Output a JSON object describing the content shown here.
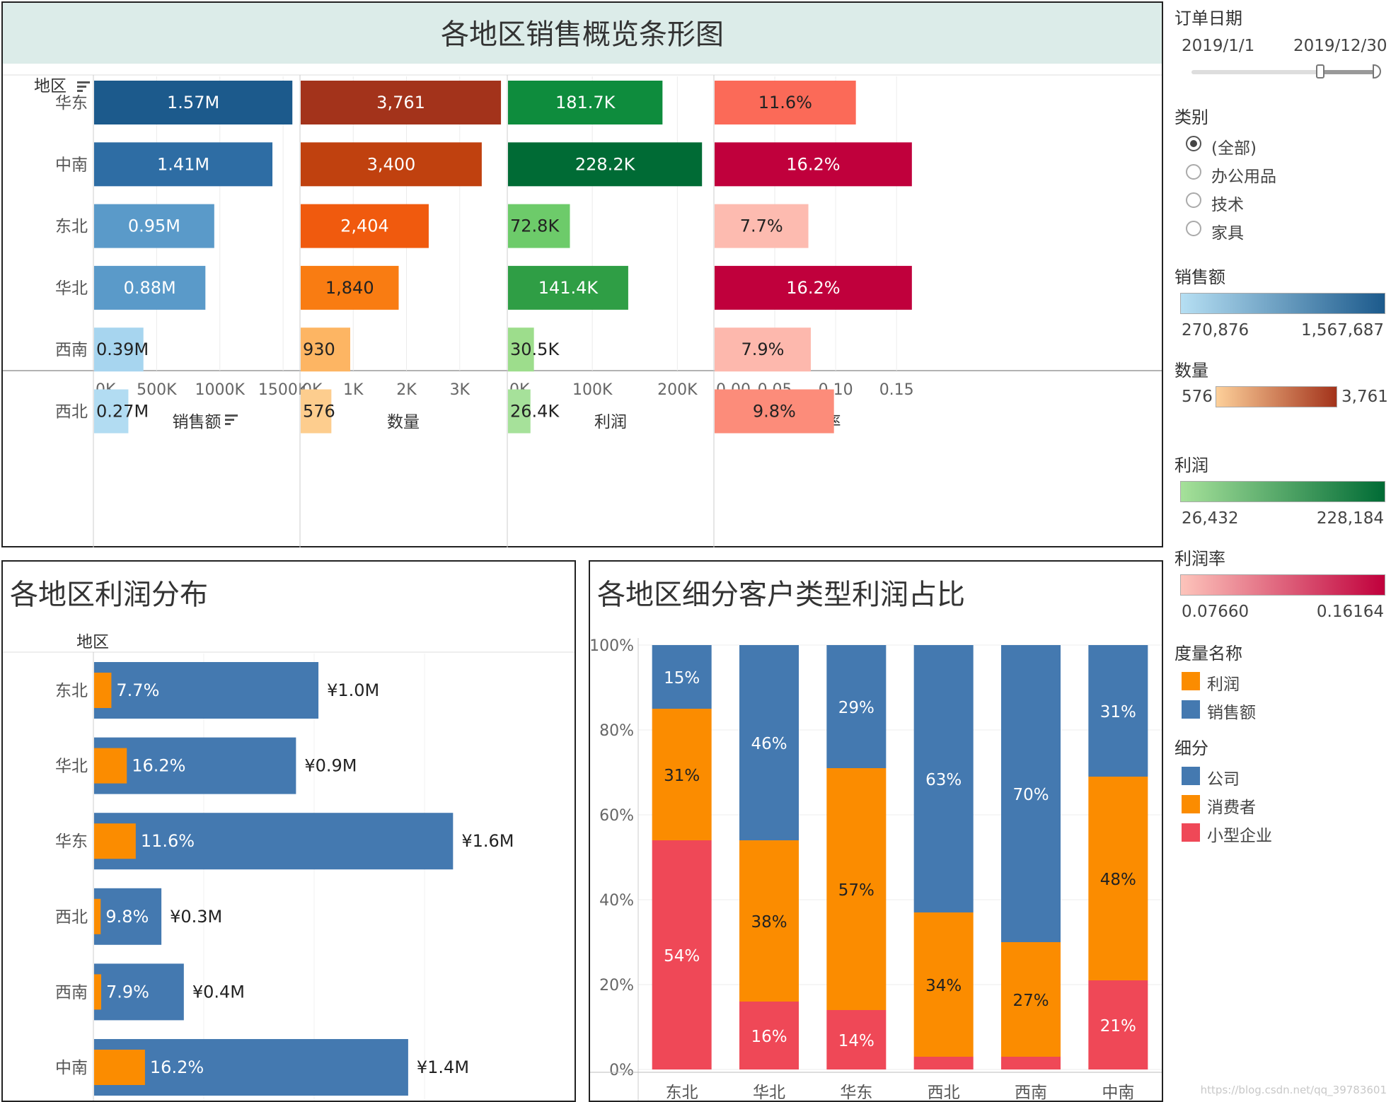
{
  "overview": {
    "title": "各地区销售概览条形图",
    "row_header": "地区",
    "regions": [
      "华东",
      "中南",
      "东北",
      "华北",
      "西南",
      "西北"
    ],
    "columns": [
      {
        "key": "sales",
        "title": "销售额",
        "sort_icon": "sort-icon",
        "ticks": [
          "0K",
          "500K",
          "1000K",
          "1500K"
        ],
        "tick_values": [
          0,
          500000,
          1000000,
          1500000
        ],
        "max": 1600000,
        "values": [
          1567687,
          1410000,
          950000,
          880000,
          390000,
          270876
        ],
        "labels": [
          "1.57M",
          "1.41M",
          "0.95M",
          "0.88M",
          "0.39M",
          "0.27M"
        ],
        "colors": [
          "#1c5a8c",
          "#2e6da4",
          "#5a9ac9",
          "#5a9ac9",
          "#a7d5ef",
          "#b2dcf2"
        ]
      },
      {
        "key": "qty",
        "title": "数量",
        "ticks": [
          "0K",
          "1K",
          "2K",
          "3K"
        ],
        "tick_values": [
          0,
          1000,
          2000,
          3000
        ],
        "max": 3800,
        "values": [
          3761,
          3400,
          2404,
          1840,
          930,
          576
        ],
        "labels": [
          "3,761",
          "3,400",
          "2,404",
          "1,840",
          "930",
          "576"
        ],
        "colors": [
          "#a3331b",
          "#c0410f",
          "#f05a0e",
          "#f97c12",
          "#fdb563",
          "#fdcd8e"
        ]
      },
      {
        "key": "profit",
        "title": "利润",
        "ticks": [
          "0K",
          "100K",
          "200K"
        ],
        "tick_values": [
          0,
          100000,
          200000
        ],
        "max": 238000,
        "values": [
          181700,
          228184,
          72800,
          141400,
          30500,
          26432
        ],
        "labels": [
          "181.7K",
          "228.2K",
          "72.8K",
          "141.4K",
          "30.5K",
          "26.4K"
        ],
        "colors": [
          "#0e8c3d",
          "#006b35",
          "#6dcb6a",
          "#2f9e45",
          "#9ddd8c",
          "#a6e19a"
        ]
      },
      {
        "key": "margin",
        "title": "利润率",
        "ticks": [
          "0.00",
          "0.05",
          "0.10",
          "0.15"
        ],
        "tick_values": [
          0,
          0.05,
          0.1,
          0.15
        ],
        "max": 0.165,
        "values": [
          0.116,
          0.162,
          0.077,
          0.162,
          0.079,
          0.098
        ],
        "labels": [
          "11.6%",
          "16.2%",
          "7.7%",
          "16.2%",
          "7.9%",
          "9.8%"
        ],
        "colors": [
          "#fb6a58",
          "#c0003c",
          "#fdbbb0",
          "#c0003c",
          "#fdb8ad",
          "#fc8c7a"
        ]
      }
    ]
  },
  "profit_dist": {
    "title": "各地区利润分布",
    "row_header": "地区",
    "max_sales": 1640000,
    "rows": [
      {
        "region": "东北",
        "sales": 1000000,
        "margin": 0.077,
        "margin_label": "7.7%",
        "sales_label": "¥1.0M"
      },
      {
        "region": "华北",
        "sales": 900000,
        "margin": 0.162,
        "margin_label": "16.2%",
        "sales_label": "¥0.9M"
      },
      {
        "region": "华东",
        "sales": 1600000,
        "margin": 0.116,
        "margin_label": "11.6%",
        "sales_label": "¥1.6M"
      },
      {
        "region": "西北",
        "sales": 300000,
        "margin": 0.098,
        "margin_label": "9.8%",
        "sales_label": "¥0.3M"
      },
      {
        "region": "西南",
        "sales": 400000,
        "margin": 0.079,
        "margin_label": "7.9%",
        "sales_label": "¥0.4M"
      },
      {
        "region": "中南",
        "sales": 1400000,
        "margin": 0.162,
        "margin_label": "16.2%",
        "sales_label": "¥1.4M"
      }
    ],
    "colors": {
      "sales": "#4479b0",
      "profit": "#fb8c00"
    }
  },
  "segment": {
    "title": "各地区细分客户类型利润占比",
    "yticks": [
      "100%",
      "80%",
      "60%",
      "40%",
      "20%",
      "0%"
    ],
    "categories": [
      "东北",
      "华北",
      "华东",
      "西北",
      "西南",
      "中南"
    ],
    "series": [
      {
        "name": "小型企业",
        "color": "#ef4857",
        "values": [
          54,
          16,
          14,
          3,
          3,
          21
        ],
        "labels": [
          "54%",
          "16%",
          "14%",
          "",
          "",
          "21%"
        ]
      },
      {
        "name": "消费者",
        "color": "#fb8c00",
        "values": [
          31,
          38,
          57,
          34,
          27,
          48
        ],
        "labels": [
          "31%",
          "38%",
          "57%",
          "34%",
          "27%",
          "48%"
        ]
      },
      {
        "name": "公司",
        "color": "#4479b0",
        "values": [
          15,
          46,
          29,
          63,
          70,
          31
        ],
        "labels": [
          "15%",
          "46%",
          "29%",
          "63%",
          "70%",
          "31%"
        ]
      }
    ]
  },
  "sidebar": {
    "date_filter": {
      "title": "订单日期",
      "start": "2019/1/1",
      "end": "2019/12/30"
    },
    "category_filter": {
      "title": "类别",
      "options": [
        "(全部)",
        "办公用品",
        "技术",
        "家具"
      ],
      "selected": 0
    },
    "legends": [
      {
        "title": "销售额",
        "min": "270,876",
        "max": "1,567,687",
        "from": "#b6dff3",
        "to": "#1c5a8c"
      },
      {
        "title": "数量",
        "min": "576",
        "max": "3,761",
        "from": "#fdd09a",
        "to": "#a3331b"
      },
      {
        "title": "利润",
        "min": "26,432",
        "max": "228,184",
        "from": "#a6e19a",
        "to": "#006b35"
      },
      {
        "title": "利润率",
        "min": "0.07660",
        "max": "0.16164",
        "from": "#fdc4bb",
        "to": "#c0003c"
      }
    ],
    "measure_legend": {
      "title": "度量名称",
      "items": [
        {
          "label": "利润",
          "color": "#fb8c00"
        },
        {
          "label": "销售额",
          "color": "#4479b0"
        }
      ]
    },
    "segment_legend": {
      "title": "细分",
      "items": [
        {
          "label": "公司",
          "color": "#4479b0"
        },
        {
          "label": "消费者",
          "color": "#fb8c00"
        },
        {
          "label": "小型企业",
          "color": "#ef4857"
        }
      ]
    }
  },
  "watermark": "https://blog.csdn.net/qq_39783601"
}
